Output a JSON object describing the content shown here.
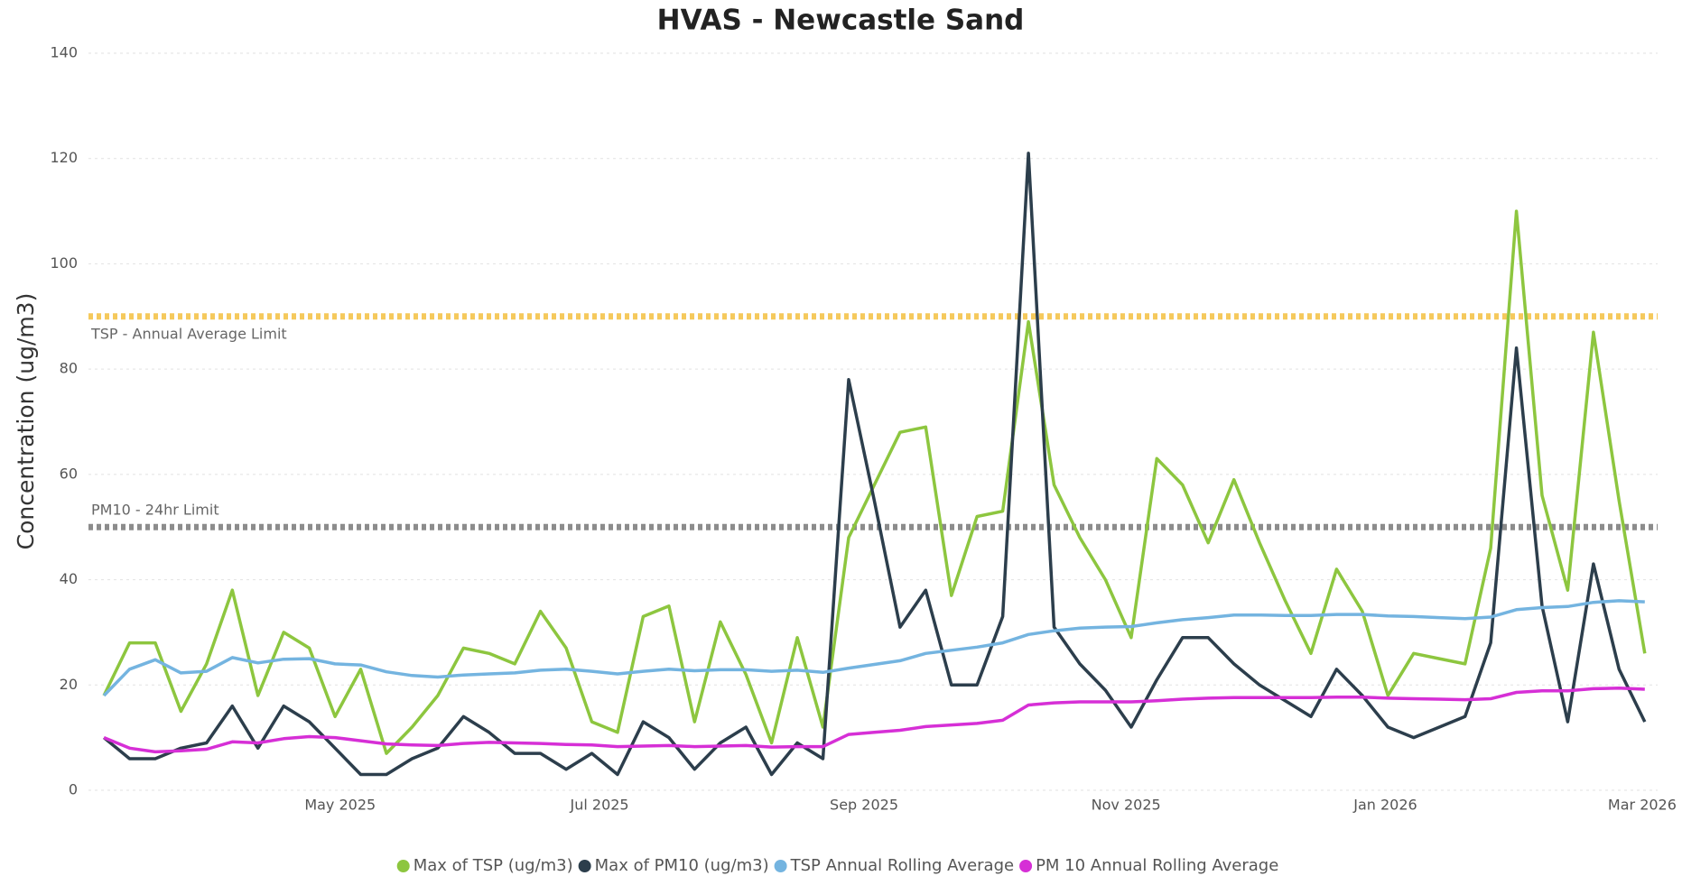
{
  "chart_data": {
    "type": "line",
    "title": "HVAS - Newcastle Sand",
    "y_label": "Concentration (ug/m3)",
    "categories": [
      null,
      null,
      null,
      null,
      null,
      null,
      null,
      null,
      null,
      null,
      null,
      null,
      null,
      null,
      null,
      null,
      null,
      null,
      null,
      null,
      null,
      null,
      null,
      null,
      null,
      null,
      null,
      null,
      null,
      null,
      null,
      null,
      null,
      null,
      null,
      null,
      null,
      null,
      null,
      null,
      null,
      null,
      null,
      null,
      null,
      null,
      null,
      null,
      null,
      null,
      null,
      null,
      null,
      null,
      null,
      null,
      null,
      null,
      null,
      null,
      null
    ],
    "xlim": [
      -0.6,
      60.5
    ],
    "xticks": [
      {
        "value": 9.2,
        "label": "May 2025"
      },
      {
        "value": 19.3,
        "label": "Jul 2025"
      },
      {
        "value": 29.6,
        "label": "Sep 2025"
      },
      {
        "value": 39.8,
        "label": "Nov 2025"
      },
      {
        "value": 49.9,
        "label": "Jan 2026"
      },
      {
        "value": 59.9,
        "label": "Mar 2026"
      }
    ],
    "ylim": [
      0,
      140
    ],
    "yticks": [
      0,
      20,
      40,
      60,
      80,
      100,
      120,
      140
    ],
    "grid": true,
    "legend": "bottom",
    "reference_lines": [
      {
        "label": "TSP - Annual Average Limit",
        "value": 90,
        "color": "#f5c95c"
      },
      {
        "label": "PM10 - 24hr Limit",
        "value": 50,
        "color": "#8c8c8c"
      }
    ],
    "series": [
      {
        "name": "Max of TSP (ug/m3)",
        "color": "#8dc63f",
        "values": [
          18,
          28,
          28,
          15,
          24,
          38,
          18,
          30,
          27,
          14,
          23,
          7,
          12,
          18,
          27,
          26,
          24,
          34,
          27,
          13,
          11,
          33,
          35,
          13,
          32,
          22,
          9,
          29,
          12,
          48,
          58,
          68,
          69,
          37,
          52,
          53,
          89,
          58,
          48,
          40,
          29,
          63,
          58,
          47,
          59,
          47,
          36,
          26,
          42,
          34,
          18,
          26,
          25,
          24,
          46,
          110,
          56,
          38,
          87,
          55,
          26
        ]
      },
      {
        "name": "Max of PM10 (ug/m3)",
        "color": "#2c3e4c",
        "values": [
          10,
          6,
          6,
          8,
          9,
          16,
          8,
          16,
          13,
          8,
          3,
          3,
          6,
          8,
          14,
          11,
          7,
          7,
          4,
          7,
          3,
          13,
          10,
          4,
          9,
          12,
          3,
          9,
          6,
          78,
          55,
          31,
          38,
          20,
          20,
          33,
          121,
          31,
          24,
          19,
          12,
          21,
          29,
          29,
          24,
          20,
          17,
          14,
          23,
          18,
          12,
          10,
          12,
          14,
          28,
          84,
          35,
          13,
          43,
          23,
          13
        ]
      },
      {
        "name": "TSP Annual Rolling Average",
        "color": "#74b4e0",
        "values": [
          18,
          23,
          24.8,
          22.3,
          22.6,
          25.2,
          24.2,
          24.9,
          25,
          24,
          23.8,
          22.5,
          21.8,
          21.5,
          21.9,
          22.1,
          22.3,
          22.8,
          23,
          22.6,
          22.1,
          22.6,
          23,
          22.7,
          22.9,
          22.9,
          22.6,
          22.8,
          22.4,
          23.2,
          23.9,
          24.6,
          26,
          26.6,
          27.2,
          28,
          29.6,
          30.3,
          30.8,
          31,
          31.1,
          31.8,
          32.4,
          32.8,
          33.3,
          33.3,
          33.2,
          33.2,
          33.4,
          33.4,
          33.1,
          33,
          32.8,
          32.6,
          32.9,
          34.3,
          34.7,
          34.9,
          35.7,
          36,
          35.8
        ]
      },
      {
        "name": "PM 10 Annual Rolling Average",
        "color": "#d62fd6",
        "values": [
          10,
          8,
          7.3,
          7.5,
          7.8,
          9.2,
          9,
          9.8,
          10.2,
          10,
          9.4,
          8.8,
          8.6,
          8.5,
          8.9,
          9.1,
          9,
          8.9,
          8.7,
          8.6,
          8.3,
          8.4,
          8.5,
          8.3,
          8.4,
          8.5,
          8.2,
          8.3,
          8.3,
          10.6,
          11,
          11.4,
          12.1,
          12.4,
          12.7,
          13.3,
          16.2,
          16.6,
          16.8,
          16.8,
          16.8,
          17,
          17.3,
          17.5,
          17.6,
          17.6,
          17.6,
          17.6,
          17.7,
          17.7,
          17.5,
          17.4,
          17.3,
          17.2,
          17.4,
          18.6,
          18.9,
          18.9,
          19.3,
          19.4,
          19.2
        ]
      }
    ]
  }
}
